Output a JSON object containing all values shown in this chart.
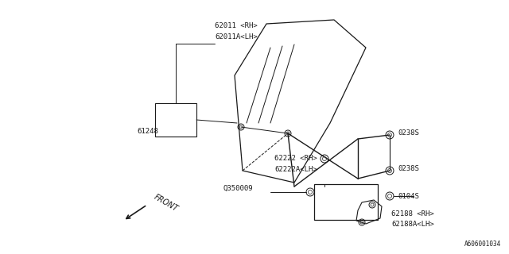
{
  "bg_color": "#ffffff",
  "line_color": "#1a1a1a",
  "text_color": "#1a1a1a",
  "fig_width": 6.4,
  "fig_height": 3.2,
  "dpi": 100,
  "part_number_code": "A606001034",
  "labels": {
    "part1": "62011 <RH>",
    "part1b": "62011A<LH>",
    "part2": "61248",
    "part3": "62222 <RH>",
    "part3b": "62222A<LH>",
    "part4": "Q350009",
    "part5": "0238S",
    "part5b": "0238S",
    "part6": "0104S",
    "part7": "62188 <RH>",
    "part7b": "62188A<LH>",
    "front_label": "FRONT"
  }
}
